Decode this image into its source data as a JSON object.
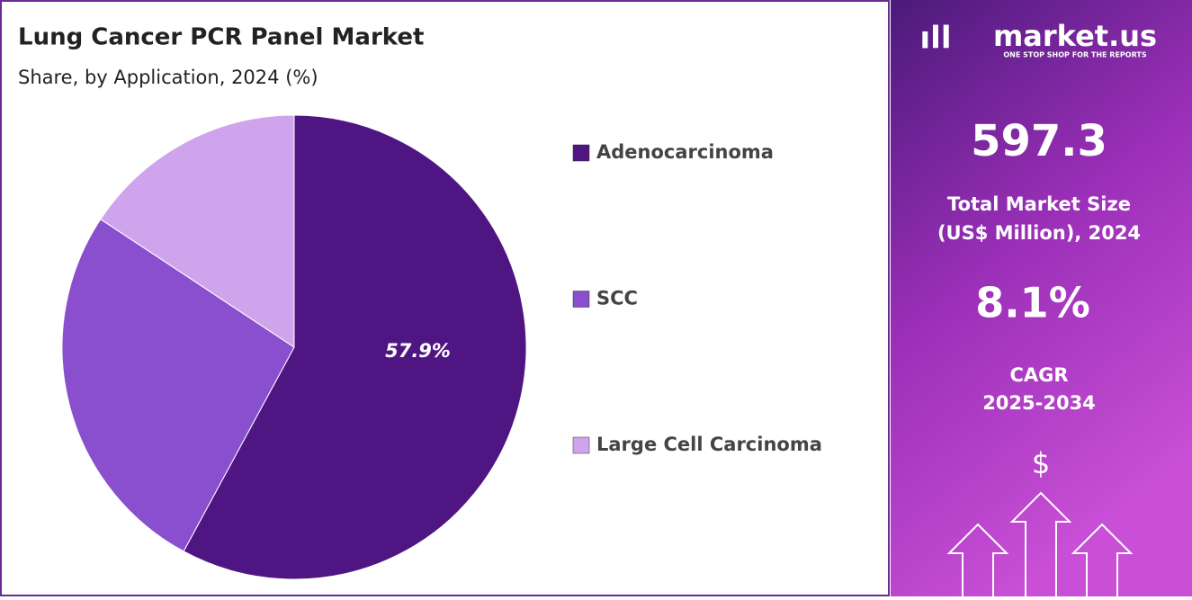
{
  "chart_data": {
    "type": "pie",
    "title": "Lung Cancer PCR Panel Market",
    "subtitle": "Share, by Application, 2024 (%)",
    "categories": [
      "Adenocarcinoma",
      "SCC",
      "Large Cell Carcinoma"
    ],
    "values": [
      57.9,
      26.4,
      15.7
    ],
    "value_labels": [
      "57.9%",
      null,
      null
    ],
    "colors": [
      "#4f1582",
      "#8a4fcf",
      "#d0a4ec"
    ],
    "legend": "right"
  },
  "sidebar": {
    "brand": "market.us",
    "tagline": "ONE STOP SHOP FOR THE REPORTS",
    "market_size": "597.3",
    "market_size_label": [
      "Total Market Size",
      "(US$ Million), 2024"
    ],
    "cagr": "8.1%",
    "cagr_label": [
      "CAGR",
      "2025-2034"
    ],
    "currency": "$"
  }
}
